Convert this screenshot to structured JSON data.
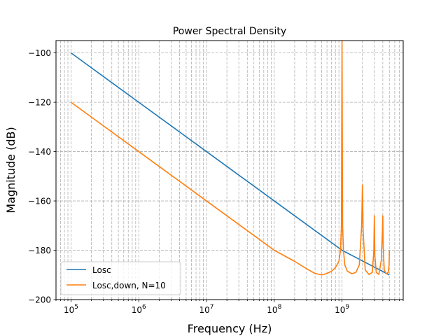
{
  "chart_data": {
    "type": "line",
    "title": "Power Spectral Density",
    "xlabel": "Frequency (Hz)",
    "ylabel": "Magnitude (dB)",
    "xscale": "log",
    "xlim": [
      60000,
      8000000000
    ],
    "ylim": [
      -200,
      -95
    ],
    "grid": "both-major-minor-dashed",
    "legend_position": "lower-left",
    "x_ticks": [
      {
        "value": 100000,
        "base": "10",
        "exp": "5"
      },
      {
        "value": 1000000,
        "base": "10",
        "exp": "6"
      },
      {
        "value": 10000000,
        "base": "10",
        "exp": "7"
      },
      {
        "value": 100000000,
        "base": "10",
        "exp": "8"
      },
      {
        "value": 1000000000,
        "base": "10",
        "exp": "9"
      }
    ],
    "y_ticks": [
      {
        "value": -200,
        "label": "−200"
      },
      {
        "value": -180,
        "label": "−180"
      },
      {
        "value": -160,
        "label": "−160"
      },
      {
        "value": -140,
        "label": "−140"
      },
      {
        "value": -120,
        "label": "−120"
      },
      {
        "value": -100,
        "label": "−100"
      }
    ],
    "series": [
      {
        "name": "Losc",
        "color": "#1f77b4",
        "x": [
          100000,
          1000000,
          10000000,
          100000000,
          1000000000,
          5000000000
        ],
        "y": [
          -100,
          -120,
          -140,
          -160,
          -180,
          -190
        ]
      },
      {
        "name": "Losc,down, N=10",
        "color": "#ff7f0e",
        "x": [
          100000,
          1000000,
          10000000,
          100000000,
          200000000,
          300000000,
          400000000,
          500000000,
          600000000,
          700000000,
          800000000,
          900000000,
          950000000,
          980000000,
          1000000000,
          1020000000,
          1050000000,
          1100000000,
          1200000000,
          1400000000,
          1600000000,
          1800000000,
          1950000000,
          2000000000,
          2050000000,
          2200000000,
          2500000000,
          2800000000,
          2950000000,
          3000000000,
          3050000000,
          3200000000,
          3500000000,
          3800000000,
          3950000000,
          4000000000,
          4050000000,
          4200000000,
          4500000000,
          4800000000,
          4950000000,
          5000000000
        ],
        "y": [
          -120,
          -140,
          -160,
          -180,
          -184.5,
          -187.5,
          -189.4,
          -190,
          -189.4,
          -188.5,
          -187,
          -184.5,
          -180,
          -170,
          -95,
          -170,
          -180,
          -186,
          -188.5,
          -189.5,
          -189,
          -186,
          -170,
          -153.5,
          -172,
          -188,
          -189.8,
          -189,
          -180,
          -166,
          -182,
          -189,
          -189.8,
          -184,
          -172,
          -166,
          -178,
          -188,
          -189.5,
          -189,
          -186,
          -180
        ]
      }
    ]
  }
}
